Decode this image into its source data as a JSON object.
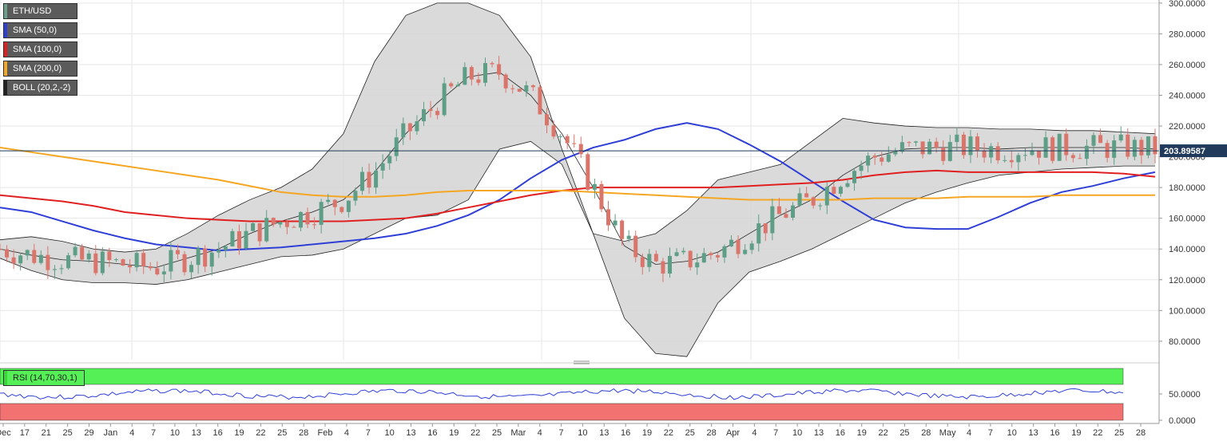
{
  "legend": [
    {
      "label": "ETH/USD",
      "color": "#6b9f8c"
    },
    {
      "label": "SMA (50,0)",
      "color": "#2f3fd6"
    },
    {
      "label": "SMA (100,0)",
      "color": "#e02020"
    },
    {
      "label": "SMA (200,0)",
      "color": "#f5a623"
    },
    {
      "label": "BOLL (20,2,-2)",
      "color": "#222222"
    }
  ],
  "rsi_legend": {
    "label": "RSI (14,70,30,1)",
    "color": "#39d839"
  },
  "current_price_label": "203.89587",
  "colors": {
    "up": "#5f9e86",
    "down": "#d9756b",
    "sma50": "#2f3fd6",
    "sma100": "#e02020",
    "sma200": "#f5a623",
    "band_fill": "#d4d4d4",
    "rsi_line": "#2f3fd6",
    "rsi_overbought": "#55f055",
    "rsi_oversold": "#f27272"
  },
  "chart_data": {
    "type": "candlestick",
    "symbol": "ETH/USD",
    "y_ticks": [
      "300.0000",
      "280.0000",
      "260.0000",
      "240.0000",
      "220.0000",
      "200.0000",
      "180.0000",
      "160.0000",
      "140.0000",
      "120.0000",
      "100.0000",
      "80.0000"
    ],
    "ylim": [
      68,
      302
    ],
    "x_ticks": [
      "Dec",
      "17",
      "21",
      "25",
      "29",
      "Jan",
      "4",
      "7",
      "10",
      "13",
      "16",
      "19",
      "22",
      "25",
      "28",
      "Feb",
      "4",
      "7",
      "10",
      "13",
      "16",
      "19",
      "22",
      "25",
      "Mar",
      "4",
      "7",
      "10",
      "13",
      "16",
      "19",
      "22",
      "25",
      "28",
      "Apr",
      "4",
      "7",
      "10",
      "13",
      "16",
      "19",
      "22",
      "25",
      "28",
      "May",
      "4",
      "7",
      "10",
      "13",
      "16",
      "19",
      "22",
      "25",
      "28"
    ],
    "current_price": 203.89587,
    "series": [
      {
        "name": "SMA (50,0)",
        "values": [
          [
            0,
            167
          ],
          [
            20,
            164
          ],
          [
            40,
            158
          ],
          [
            60,
            152
          ],
          [
            80,
            147
          ],
          [
            100,
            143
          ],
          [
            120,
            141
          ],
          [
            140,
            139
          ],
          [
            160,
            140
          ],
          [
            180,
            141
          ],
          [
            200,
            143
          ],
          [
            220,
            145
          ],
          [
            240,
            147
          ],
          [
            260,
            150
          ],
          [
            280,
            155
          ],
          [
            300,
            162
          ],
          [
            320,
            172
          ],
          [
            340,
            186
          ],
          [
            360,
            198
          ],
          [
            380,
            206
          ],
          [
            400,
            211
          ],
          [
            420,
            218
          ],
          [
            440,
            222
          ],
          [
            460,
            218
          ],
          [
            480,
            208
          ],
          [
            500,
            197
          ],
          [
            520,
            184
          ],
          [
            540,
            171
          ],
          [
            560,
            159
          ],
          [
            580,
            154
          ],
          [
            600,
            153
          ],
          [
            620,
            153
          ],
          [
            640,
            161
          ],
          [
            660,
            170
          ],
          [
            680,
            177
          ],
          [
            700,
            181
          ],
          [
            720,
            186
          ],
          [
            740,
            190
          ]
        ]
      },
      {
        "name": "SMA (100,0)",
        "values": [
          [
            0,
            175
          ],
          [
            20,
            173
          ],
          [
            40,
            171
          ],
          [
            60,
            168
          ],
          [
            80,
            164
          ],
          [
            100,
            162
          ],
          [
            120,
            160
          ],
          [
            140,
            159
          ],
          [
            160,
            158
          ],
          [
            180,
            158
          ],
          [
            200,
            158
          ],
          [
            220,
            158
          ],
          [
            240,
            159
          ],
          [
            260,
            160
          ],
          [
            280,
            163
          ],
          [
            300,
            167
          ],
          [
            320,
            171
          ],
          [
            340,
            175
          ],
          [
            360,
            178
          ],
          [
            380,
            180
          ],
          [
            400,
            180
          ],
          [
            420,
            180
          ],
          [
            440,
            180
          ],
          [
            460,
            180
          ],
          [
            480,
            181
          ],
          [
            500,
            182
          ],
          [
            520,
            183
          ],
          [
            540,
            185
          ],
          [
            560,
            188
          ],
          [
            580,
            190
          ],
          [
            600,
            191
          ],
          [
            620,
            190
          ],
          [
            640,
            190
          ],
          [
            660,
            190
          ],
          [
            680,
            190
          ],
          [
            700,
            190
          ],
          [
            720,
            189
          ],
          [
            740,
            187
          ]
        ]
      },
      {
        "name": "SMA (200,0)",
        "values": [
          [
            0,
            206
          ],
          [
            20,
            203
          ],
          [
            40,
            200
          ],
          [
            60,
            197
          ],
          [
            80,
            194
          ],
          [
            100,
            191
          ],
          [
            120,
            188
          ],
          [
            140,
            185
          ],
          [
            160,
            181
          ],
          [
            180,
            177
          ],
          [
            200,
            175
          ],
          [
            220,
            174
          ],
          [
            240,
            174
          ],
          [
            260,
            175
          ],
          [
            280,
            177
          ],
          [
            300,
            178
          ],
          [
            320,
            178
          ],
          [
            340,
            178
          ],
          [
            360,
            178
          ],
          [
            380,
            177
          ],
          [
            400,
            176
          ],
          [
            420,
            175
          ],
          [
            440,
            174
          ],
          [
            460,
            173
          ],
          [
            480,
            172
          ],
          [
            500,
            172
          ],
          [
            520,
            172
          ],
          [
            540,
            172
          ],
          [
            560,
            173
          ],
          [
            580,
            173
          ],
          [
            600,
            173
          ],
          [
            620,
            174
          ],
          [
            640,
            174
          ],
          [
            660,
            174
          ],
          [
            680,
            175
          ],
          [
            700,
            175
          ],
          [
            720,
            175
          ],
          [
            740,
            175
          ]
        ]
      },
      {
        "name": "BOLL upper",
        "values": [
          [
            0,
            146
          ],
          [
            20,
            148
          ],
          [
            40,
            145
          ],
          [
            60,
            140
          ],
          [
            80,
            138
          ],
          [
            100,
            140
          ],
          [
            120,
            150
          ],
          [
            140,
            162
          ],
          [
            160,
            172
          ],
          [
            180,
            180
          ],
          [
            200,
            192
          ],
          [
            220,
            215
          ],
          [
            240,
            262
          ],
          [
            260,
            292
          ],
          [
            280,
            300
          ],
          [
            300,
            300
          ],
          [
            320,
            292
          ],
          [
            340,
            265
          ],
          [
            360,
            205
          ],
          [
            380,
            150
          ],
          [
            400,
            145
          ],
          [
            420,
            150
          ],
          [
            440,
            165
          ],
          [
            460,
            185
          ],
          [
            480,
            190
          ],
          [
            500,
            195
          ],
          [
            520,
            210
          ],
          [
            540,
            225
          ],
          [
            560,
            222
          ],
          [
            580,
            220
          ],
          [
            600,
            219
          ],
          [
            620,
            219
          ],
          [
            640,
            218
          ],
          [
            660,
            218
          ],
          [
            680,
            217
          ],
          [
            700,
            217
          ],
          [
            720,
            216
          ],
          [
            740,
            215
          ]
        ]
      },
      {
        "name": "BOLL middle",
        "values": [
          [
            0,
            140
          ],
          [
            20,
            136
          ],
          [
            40,
            133
          ],
          [
            60,
            132
          ],
          [
            80,
            130
          ],
          [
            100,
            128
          ],
          [
            120,
            134
          ],
          [
            140,
            140
          ],
          [
            160,
            150
          ],
          [
            180,
            158
          ],
          [
            200,
            164
          ],
          [
            220,
            172
          ],
          [
            240,
            190
          ],
          [
            260,
            215
          ],
          [
            280,
            235
          ],
          [
            300,
            252
          ],
          [
            320,
            255
          ],
          [
            340,
            240
          ],
          [
            360,
            215
          ],
          [
            380,
            180
          ],
          [
            400,
            142
          ],
          [
            420,
            130
          ],
          [
            440,
            132
          ],
          [
            460,
            138
          ],
          [
            480,
            150
          ],
          [
            500,
            162
          ],
          [
            520,
            172
          ],
          [
            540,
            188
          ],
          [
            560,
            200
          ],
          [
            580,
            205
          ],
          [
            600,
            206
          ],
          [
            620,
            206
          ],
          [
            640,
            205
          ],
          [
            660,
            206
          ],
          [
            680,
            206
          ],
          [
            700,
            206
          ],
          [
            720,
            206
          ],
          [
            740,
            205
          ]
        ]
      },
      {
        "name": "BOLL lower",
        "values": [
          [
            0,
            134
          ],
          [
            20,
            126
          ],
          [
            40,
            120
          ],
          [
            60,
            118
          ],
          [
            80,
            118
          ],
          [
            100,
            117
          ],
          [
            120,
            120
          ],
          [
            140,
            125
          ],
          [
            160,
            130
          ],
          [
            180,
            135
          ],
          [
            200,
            136
          ],
          [
            220,
            140
          ],
          [
            240,
            150
          ],
          [
            260,
            160
          ],
          [
            280,
            162
          ],
          [
            300,
            172
          ],
          [
            320,
            205
          ],
          [
            340,
            210
          ],
          [
            360,
            195
          ],
          [
            380,
            150
          ],
          [
            400,
            95
          ],
          [
            420,
            72
          ],
          [
            440,
            70
          ],
          [
            460,
            105
          ],
          [
            480,
            125
          ],
          [
            500,
            132
          ],
          [
            520,
            140
          ],
          [
            540,
            150
          ],
          [
            560,
            160
          ],
          [
            580,
            170
          ],
          [
            600,
            177
          ],
          [
            620,
            183
          ],
          [
            640,
            188
          ],
          [
            660,
            190
          ],
          [
            680,
            192
          ],
          [
            700,
            193
          ],
          [
            720,
            194
          ],
          [
            740,
            194
          ]
        ]
      }
    ],
    "rsi": {
      "overbought": 70,
      "oversold": 30,
      "ylim": [
        0,
        100
      ],
      "y_ticks": [
        "50.0000",
        "0.0000"
      ]
    }
  }
}
